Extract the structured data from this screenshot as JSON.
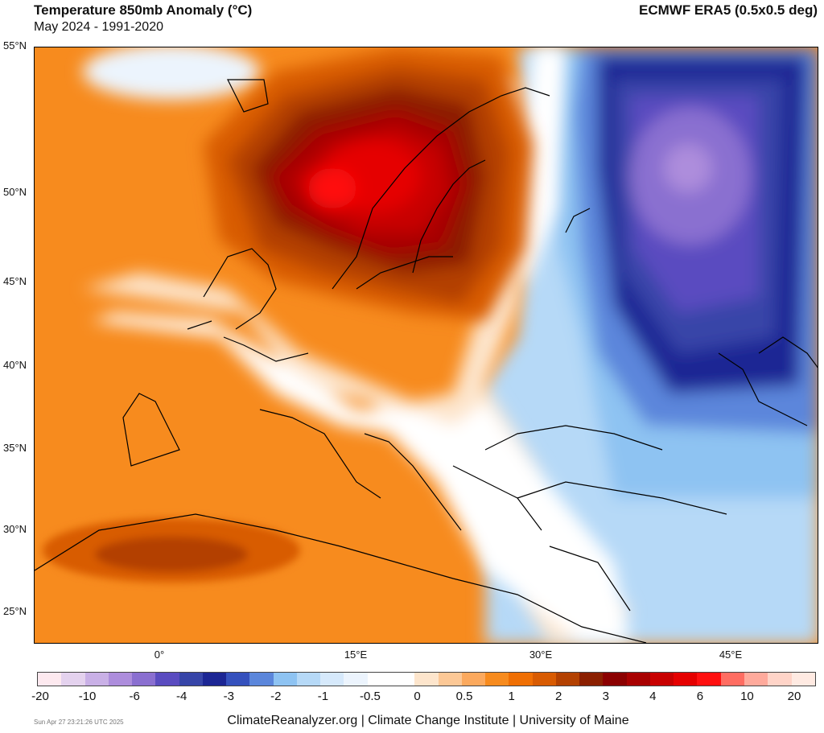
{
  "header": {
    "title": "Temperature 850mb Anomaly (°C)",
    "subtitle": "May 2024 - 1991-2020",
    "source": "ECMWF ERA5 (0.5x0.5 deg)"
  },
  "axes": {
    "lat_labels": [
      "55°N",
      "50°N",
      "45°N",
      "40°N",
      "35°N",
      "30°N",
      "25°N"
    ],
    "lon_labels": [
      "0°",
      "15°E",
      "30°E",
      "45°E"
    ]
  },
  "colorbar": {
    "labels": [
      "-20",
      "-10",
      "-6",
      "-4",
      "-3",
      "-2",
      "-1",
      "-0.5",
      "0",
      "0.5",
      "1",
      "2",
      "3",
      "4",
      "6",
      "10",
      "20"
    ],
    "colors": [
      "#fde9ef",
      "#e4d2ee",
      "#c9b0e6",
      "#ad8ddc",
      "#8a6fd0",
      "#5a4cc0",
      "#3745a8",
      "#1c2694",
      "#3551bd",
      "#5b86db",
      "#8ec3f2",
      "#b6d9f7",
      "#d6e9fb",
      "#ecf4fd",
      "#ffffff",
      "#ffffff",
      "#fde5cc",
      "#fcc896",
      "#fba95e",
      "#f78b1e",
      "#ef6f04",
      "#d85b02",
      "#b34101",
      "#8b1f00",
      "#8b0000",
      "#a80000",
      "#c80000",
      "#e50000",
      "#ff1010",
      "#ff6d62",
      "#ffaa9c",
      "#ffd4c8",
      "#ffeae2"
    ]
  },
  "timestamp": "Sun Apr 27 23:21:26 UTC 2025",
  "footer": "ClimateReanalyzer.org | Climate Change Institute | University of Maine"
}
